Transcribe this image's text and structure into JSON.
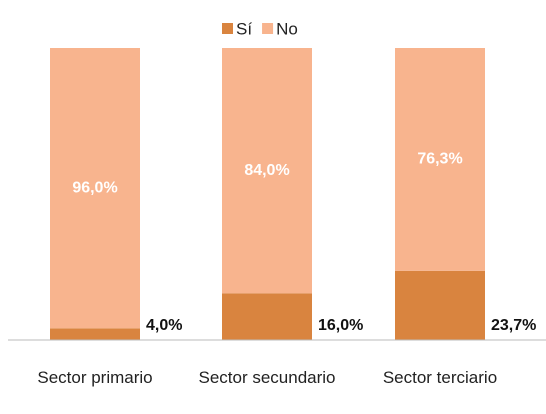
{
  "chart_data": {
    "type": "stacked_bar",
    "categories": [
      "Sector primario",
      "Sector secundario",
      "Sector terciario"
    ],
    "series": [
      {
        "name": "Sí",
        "color": "#d9843f",
        "values": [
          4.0,
          16.0,
          23.7
        ],
        "value_labels": [
          "4,0%",
          "16,0%",
          "23,7%"
        ]
      },
      {
        "name": "No",
        "color": "#f8b48e",
        "values": [
          96.0,
          84.0,
          76.3
        ],
        "value_labels": [
          "96,0%",
          "84,0%",
          "76,3%"
        ]
      }
    ],
    "ylim": [
      0,
      100
    ],
    "legend": "top"
  }
}
